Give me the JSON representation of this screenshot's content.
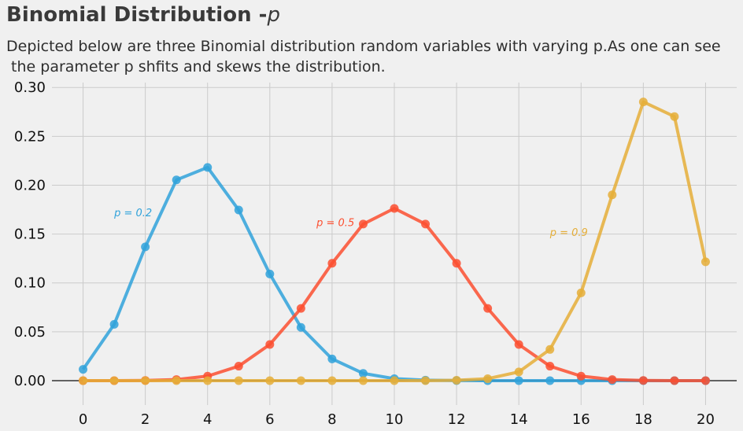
{
  "chart_data": {
    "type": "line",
    "title": "Binomial Distribution -",
    "title_var": "p",
    "subtitle_lines": [
      "Depicted below are three Binomial distribution random variables with varying p.As one can see",
      " the parameter p shfits and skews the distribution."
    ],
    "xlim": [
      -1,
      21
    ],
    "ylim": [
      -0.025,
      0.305
    ],
    "x_ticks": [
      0,
      2,
      4,
      6,
      8,
      10,
      12,
      14,
      16,
      18,
      20
    ],
    "y_ticks": [
      0.0,
      0.05,
      0.1,
      0.15,
      0.2,
      0.25,
      0.3
    ],
    "y_tick_labels": [
      "0.00",
      "0.05",
      "0.10",
      "0.15",
      "0.20",
      "0.25",
      "0.30"
    ],
    "grid": true,
    "x": [
      0,
      1,
      2,
      3,
      4,
      5,
      6,
      7,
      8,
      9,
      10,
      11,
      12,
      13,
      14,
      15,
      16,
      17,
      18,
      19,
      20
    ],
    "series": [
      {
        "name": "p = 0.2",
        "color": "#30a2da",
        "values": [
          0.0115,
          0.0576,
          0.1369,
          0.2054,
          0.2182,
          0.1746,
          0.1091,
          0.0545,
          0.0222,
          0.0074,
          0.002,
          0.0005,
          0.0001,
          0.0,
          0.0,
          0.0,
          0.0,
          0.0,
          0.0,
          0.0,
          0.0
        ]
      },
      {
        "name": "p = 0.5",
        "color": "#fc4f30",
        "values": [
          0.0,
          0.0,
          0.0002,
          0.0011,
          0.0046,
          0.0148,
          0.037,
          0.0739,
          0.1201,
          0.1602,
          0.1762,
          0.1602,
          0.1201,
          0.0739,
          0.037,
          0.0148,
          0.0046,
          0.0011,
          0.0002,
          0.0,
          0.0
        ]
      },
      {
        "name": "p = 0.9",
        "color": "#e5ae38",
        "values": [
          0.0,
          0.0,
          0.0,
          0.0,
          0.0,
          0.0,
          0.0,
          0.0,
          0.0,
          0.0,
          0.0,
          0.0,
          0.0004,
          0.002,
          0.0089,
          0.0319,
          0.0898,
          0.1901,
          0.2852,
          0.2702,
          0.1216
        ]
      }
    ],
    "annotations": [
      {
        "text": "p = 0.2",
        "x": 1.0,
        "y": 0.168,
        "color": "#30a2da"
      },
      {
        "text": "p = 0.5",
        "x": 7.5,
        "y": 0.158,
        "color": "#fc4f30"
      },
      {
        "text": "p = 0.9",
        "x": 15.0,
        "y": 0.148,
        "color": "#e5ae38"
      }
    ]
  }
}
